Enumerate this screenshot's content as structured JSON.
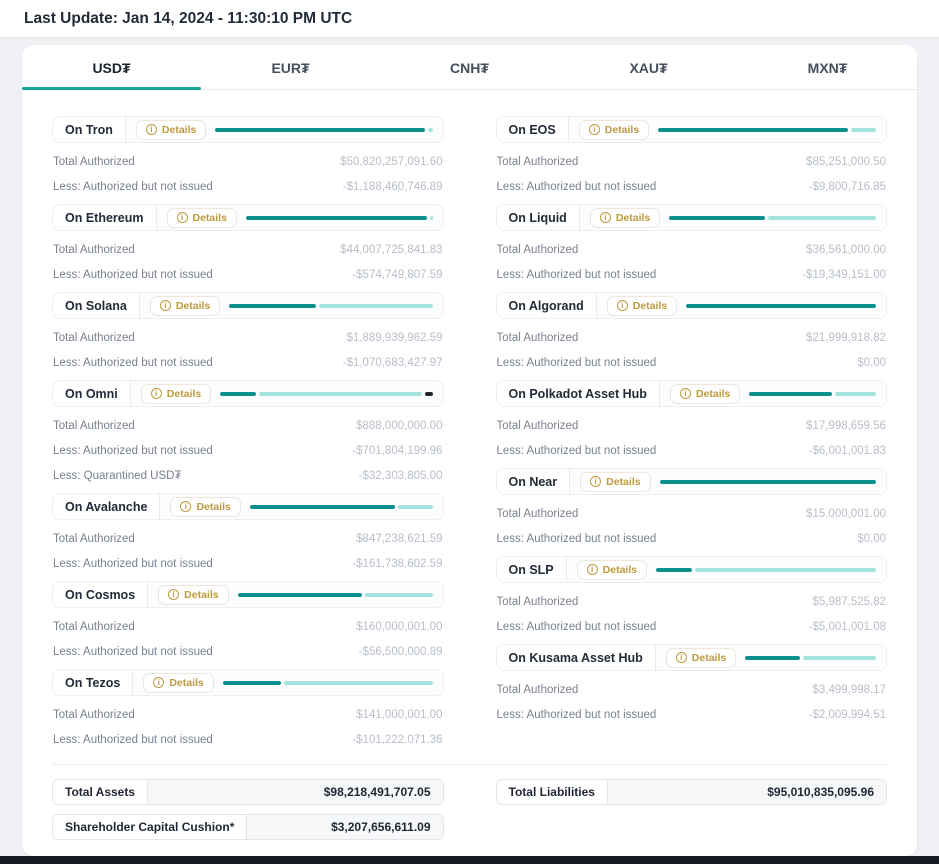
{
  "header": {
    "last_update": "Last Update: Jan 14, 2024 - 11:30:10 PM UTC"
  },
  "tabs": [
    {
      "label": "USD₮",
      "active": true
    },
    {
      "label": "EUR₮",
      "active": false
    },
    {
      "label": "CNH₮",
      "active": false
    },
    {
      "label": "XAU₮",
      "active": false
    },
    {
      "label": "MXN₮",
      "active": false
    }
  ],
  "labels": {
    "details": "Details"
  },
  "colors": {
    "accent": "#17a5a0",
    "bar_dark": "#0e8f8f",
    "bar_light": "#a7e3dd",
    "bar_quarantined": "#23252e",
    "details_gold": "#bd9a3f"
  },
  "columns": {
    "left": [
      {
        "name": "On Tron",
        "bar": [
          {
            "type": "dark",
            "pct": 97.7
          },
          {
            "type": "light",
            "pct": 2.3
          }
        ],
        "rows": [
          {
            "label": "Total Authorized",
            "value": "$50,820,257,091.60"
          },
          {
            "label": "Less: Authorized but not issued",
            "value": "-$1,188,460,746.89"
          }
        ]
      },
      {
        "name": "On Ethereum",
        "bar": [
          {
            "type": "dark",
            "pct": 98.7
          },
          {
            "type": "light",
            "pct": 1.3
          }
        ],
        "rows": [
          {
            "label": "Total Authorized",
            "value": "$44,007,725,841.83"
          },
          {
            "label": "Less: Authorized but not issued",
            "value": "-$574,749,807.59"
          }
        ]
      },
      {
        "name": "On Solana",
        "bar": [
          {
            "type": "dark",
            "pct": 43.3
          },
          {
            "type": "light",
            "pct": 56.7
          }
        ],
        "rows": [
          {
            "label": "Total Authorized",
            "value": "$1,889,939,962.59"
          },
          {
            "label": "Less: Authorized but not issued",
            "value": "-$1,070,683,427.97"
          }
        ]
      },
      {
        "name": "On Omni",
        "bar": [
          {
            "type": "dark",
            "pct": 17.3
          },
          {
            "type": "light",
            "pct": 79.1
          },
          {
            "type": "quarantined",
            "pct": 3.6
          }
        ],
        "rows": [
          {
            "label": "Total Authorized",
            "value": "$888,000,000.00"
          },
          {
            "label": "Less: Authorized but not issued",
            "value": "-$701,804,199.96"
          },
          {
            "label": "Less: Quarantined USD₮",
            "value": "-$32,303,805.00"
          }
        ]
      },
      {
        "name": "On Avalanche",
        "bar": [
          {
            "type": "dark",
            "pct": 80.9
          },
          {
            "type": "light",
            "pct": 19.1
          }
        ],
        "rows": [
          {
            "label": "Total Authorized",
            "value": "$847,238,621.59"
          },
          {
            "label": "Less: Authorized but not issued",
            "value": "-$161,738,602.59"
          }
        ]
      },
      {
        "name": "On Cosmos",
        "bar": [
          {
            "type": "dark",
            "pct": 64.7
          },
          {
            "type": "light",
            "pct": 35.3
          }
        ],
        "rows": [
          {
            "label": "Total Authorized",
            "value": "$160,000,001.00"
          },
          {
            "label": "Less: Authorized but not issued",
            "value": "-$56,500,000.89"
          }
        ]
      },
      {
        "name": "On Tezos",
        "bar": [
          {
            "type": "dark",
            "pct": 28.2
          },
          {
            "type": "light",
            "pct": 71.8
          }
        ],
        "rows": [
          {
            "label": "Total Authorized",
            "value": "$141,000,001.00"
          },
          {
            "label": "Less: Authorized but not issued",
            "value": "-$101,222,071.36"
          }
        ]
      }
    ],
    "right": [
      {
        "name": "On EOS",
        "bar": [
          {
            "type": "dark",
            "pct": 88.5
          },
          {
            "type": "light",
            "pct": 11.5
          }
        ],
        "rows": [
          {
            "label": "Total Authorized",
            "value": "$85,251,000.50"
          },
          {
            "label": "Less: Authorized but not issued",
            "value": "-$9,800,716.85"
          }
        ]
      },
      {
        "name": "On Liquid",
        "bar": [
          {
            "type": "dark",
            "pct": 47.1
          },
          {
            "type": "light",
            "pct": 52.9
          }
        ],
        "rows": [
          {
            "label": "Total Authorized",
            "value": "$36,561,000.00"
          },
          {
            "label": "Less: Authorized but not issued",
            "value": "-$19,349,151.00"
          }
        ]
      },
      {
        "name": "On Algorand",
        "bar": [
          {
            "type": "dark",
            "pct": 100
          }
        ],
        "rows": [
          {
            "label": "Total Authorized",
            "value": "$21,999,918.82"
          },
          {
            "label": "Less: Authorized but not issued",
            "value": "$0.00"
          }
        ]
      },
      {
        "name": "On Polkadot Asset Hub",
        "bar": [
          {
            "type": "dark",
            "pct": 66.7
          },
          {
            "type": "light",
            "pct": 33.3
          }
        ],
        "rows": [
          {
            "label": "Total Authorized",
            "value": "$17,998,659.56"
          },
          {
            "label": "Less: Authorized but not issued",
            "value": "-$6,001,001.83"
          }
        ]
      },
      {
        "name": "On Near",
        "bar": [
          {
            "type": "dark",
            "pct": 100
          }
        ],
        "rows": [
          {
            "label": "Total Authorized",
            "value": "$15,000,001.00"
          },
          {
            "label": "Less: Authorized but not issued",
            "value": "$0.00"
          }
        ]
      },
      {
        "name": "On SLP",
        "bar": [
          {
            "type": "dark",
            "pct": 16.5
          },
          {
            "type": "light",
            "pct": 83.5
          }
        ],
        "rows": [
          {
            "label": "Total Authorized",
            "value": "$5,987,525.82"
          },
          {
            "label": "Less: Authorized but not issued",
            "value": "-$5,001,001.08"
          }
        ]
      },
      {
        "name": "On Kusama Asset Hub",
        "bar": [
          {
            "type": "dark",
            "pct": 42.6
          },
          {
            "type": "light",
            "pct": 57.4
          }
        ],
        "rows": [
          {
            "label": "Total Authorized",
            "value": "$3,499,998.17"
          },
          {
            "label": "Less: Authorized but not issued",
            "value": "-$2,009,994.51"
          }
        ]
      }
    ]
  },
  "totals": {
    "assets": {
      "label": "Total Assets",
      "value": "$98,218,491,707.05"
    },
    "liabilities": {
      "label": "Total Liabilities",
      "value": "$95,010,835,095.96"
    },
    "cushion": {
      "label": "Shareholder Capital Cushion*",
      "value": "$3,207,656,611.09"
    }
  }
}
